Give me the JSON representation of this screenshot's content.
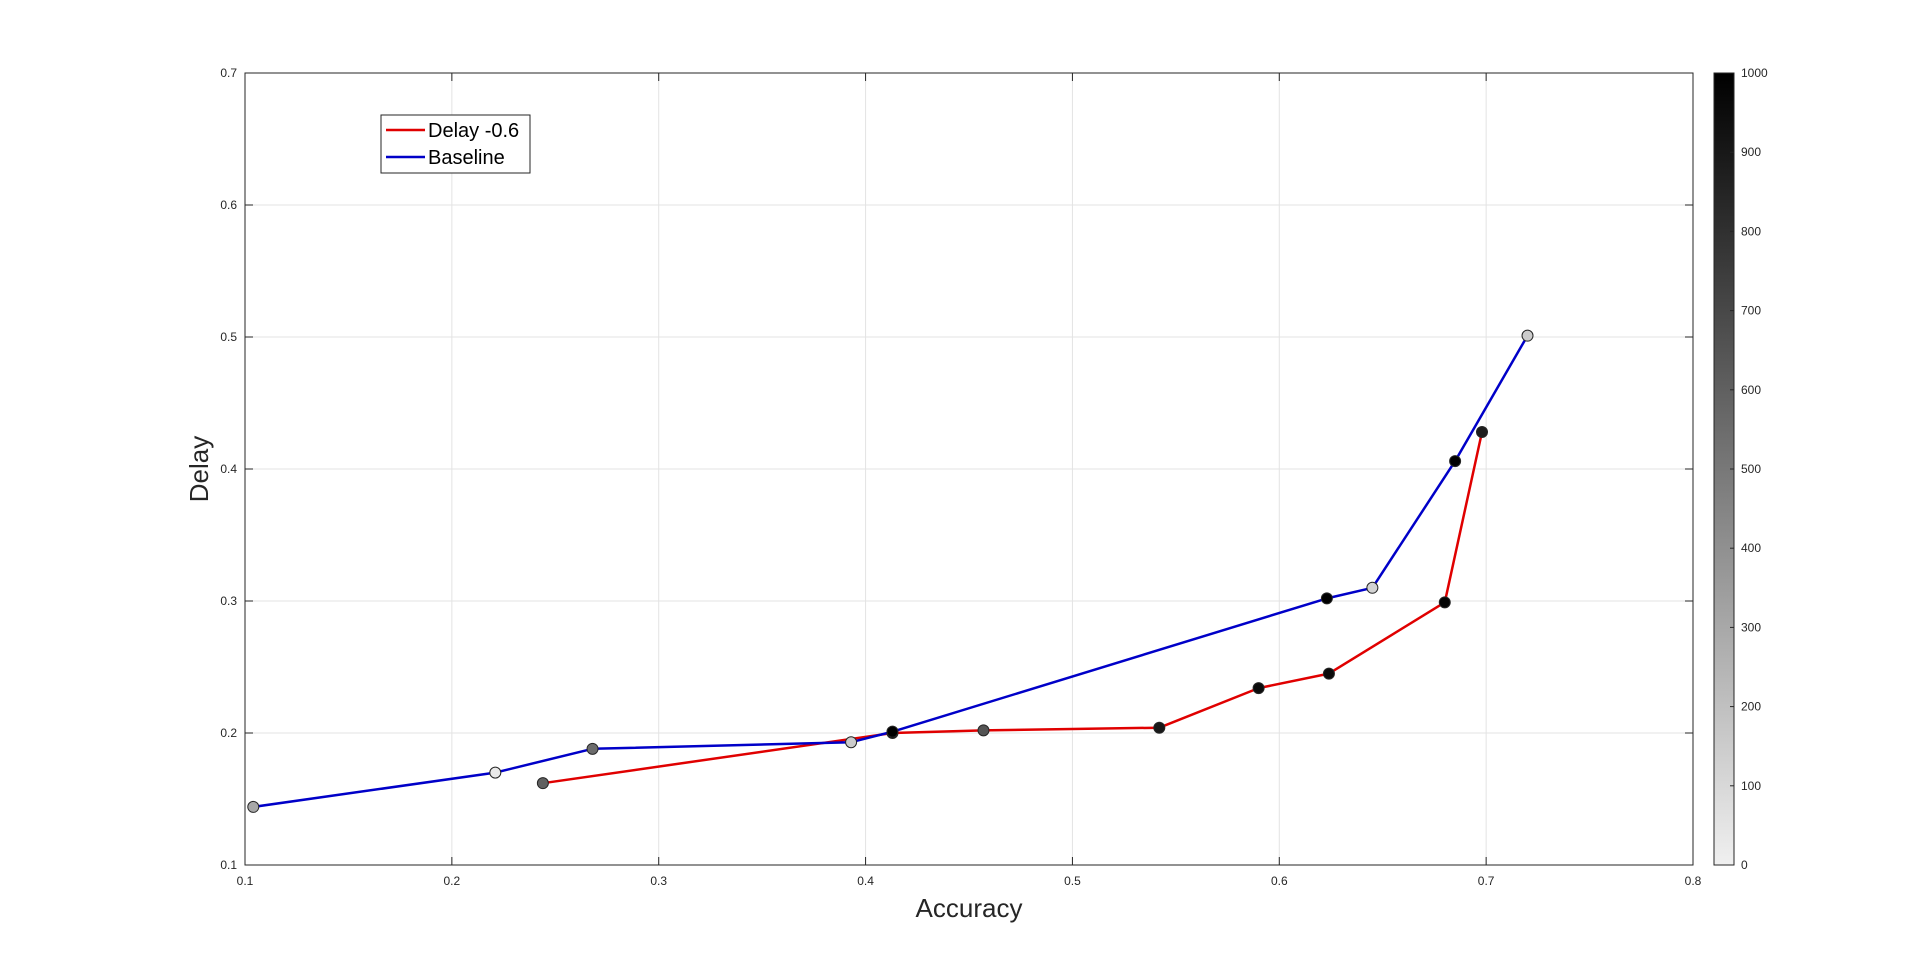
{
  "chart_data": {
    "type": "line",
    "title": "",
    "xlabel": "Accuracy",
    "ylabel": "Delay",
    "xlim": [
      0.1,
      0.8
    ],
    "ylim": [
      0.1,
      0.7
    ],
    "xticks": [
      0.1,
      0.2,
      0.3,
      0.4,
      0.5,
      0.6,
      0.7,
      0.8
    ],
    "yticks": [
      0.1,
      0.2,
      0.3,
      0.4,
      0.5,
      0.6,
      0.7
    ],
    "xtick_labels": [
      "0.1",
      "0.2",
      "0.3",
      "0.4",
      "0.5",
      "0.6",
      "0.7",
      "0.8"
    ],
    "ytick_labels": [
      "0.1",
      "0.2",
      "0.3",
      "0.4",
      "0.5",
      "0.6",
      "0.7"
    ],
    "grid": true,
    "legend_position": "top-left",
    "series": [
      {
        "name": "Delay -0.6",
        "color": "#e00000",
        "x": [
          0.244,
          0.413,
          0.457,
          0.542,
          0.59,
          0.624,
          0.68,
          0.698
        ],
        "y": [
          0.162,
          0.2,
          0.202,
          0.204,
          0.234,
          0.245,
          0.299,
          0.428
        ],
        "marker_level": [
          600,
          980,
          650,
          900,
          950,
          950,
          980,
          880
        ]
      },
      {
        "name": "Baseline",
        "color": "#0000c8",
        "x": [
          0.104,
          0.221,
          0.268,
          0.393,
          0.413,
          0.623,
          0.645,
          0.685,
          0.72
        ],
        "y": [
          0.144,
          0.17,
          0.188,
          0.193,
          0.201,
          0.302,
          0.31,
          0.406,
          0.501
        ],
        "marker_level": [
          300,
          30,
          550,
          150,
          1000,
          1000,
          120,
          1000,
          150
        ]
      }
    ],
    "colorbar": {
      "range": [
        0,
        1000
      ],
      "ticks": [
        0,
        100,
        200,
        300,
        400,
        500,
        600,
        700,
        800,
        900,
        1000
      ],
      "tick_labels": [
        "0",
        "100",
        "200",
        "300",
        "400",
        "500",
        "600",
        "700",
        "800",
        "900",
        "1000"
      ],
      "colormap": "gray-reversed",
      "color_low": "#f0f0f0",
      "color_high": "#000000"
    }
  }
}
